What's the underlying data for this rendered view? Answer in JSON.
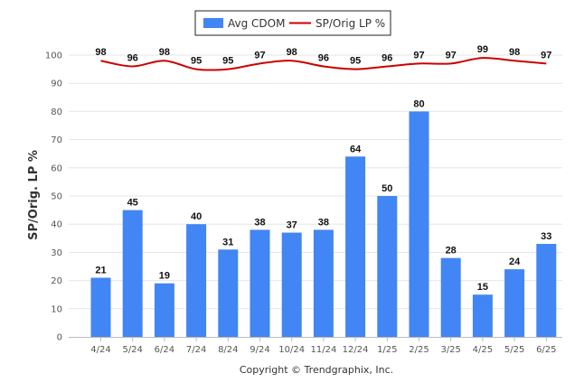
{
  "chart_data": {
    "type": "bar",
    "ylabel": "SP/Orig. LP %",
    "ylim": [
      0,
      100
    ],
    "yticks": [
      0,
      10,
      20,
      30,
      40,
      50,
      60,
      70,
      80,
      90,
      100
    ],
    "grid": true,
    "legend_position": "top-center",
    "categories": [
      "4/24",
      "5/24",
      "6/24",
      "7/24",
      "8/24",
      "9/24",
      "10/24",
      "11/24",
      "12/24",
      "1/25",
      "2/25",
      "3/25",
      "4/25",
      "5/25",
      "6/25"
    ],
    "series": [
      {
        "name": "Avg CDOM",
        "type": "bar",
        "color": "#4285f4",
        "values": [
          21,
          45,
          19,
          40,
          31,
          38,
          37,
          38,
          64,
          50,
          80,
          28,
          15,
          24,
          33
        ]
      },
      {
        "name": "SP/Orig LP %",
        "type": "line",
        "color": "#cc0000",
        "values": [
          98,
          96,
          98,
          95,
          95,
          97,
          98,
          96,
          95,
          96,
          97,
          97,
          99,
          98,
          97
        ]
      }
    ]
  },
  "footer": {
    "copyright": "Copyright © Trendgraphix, Inc."
  }
}
